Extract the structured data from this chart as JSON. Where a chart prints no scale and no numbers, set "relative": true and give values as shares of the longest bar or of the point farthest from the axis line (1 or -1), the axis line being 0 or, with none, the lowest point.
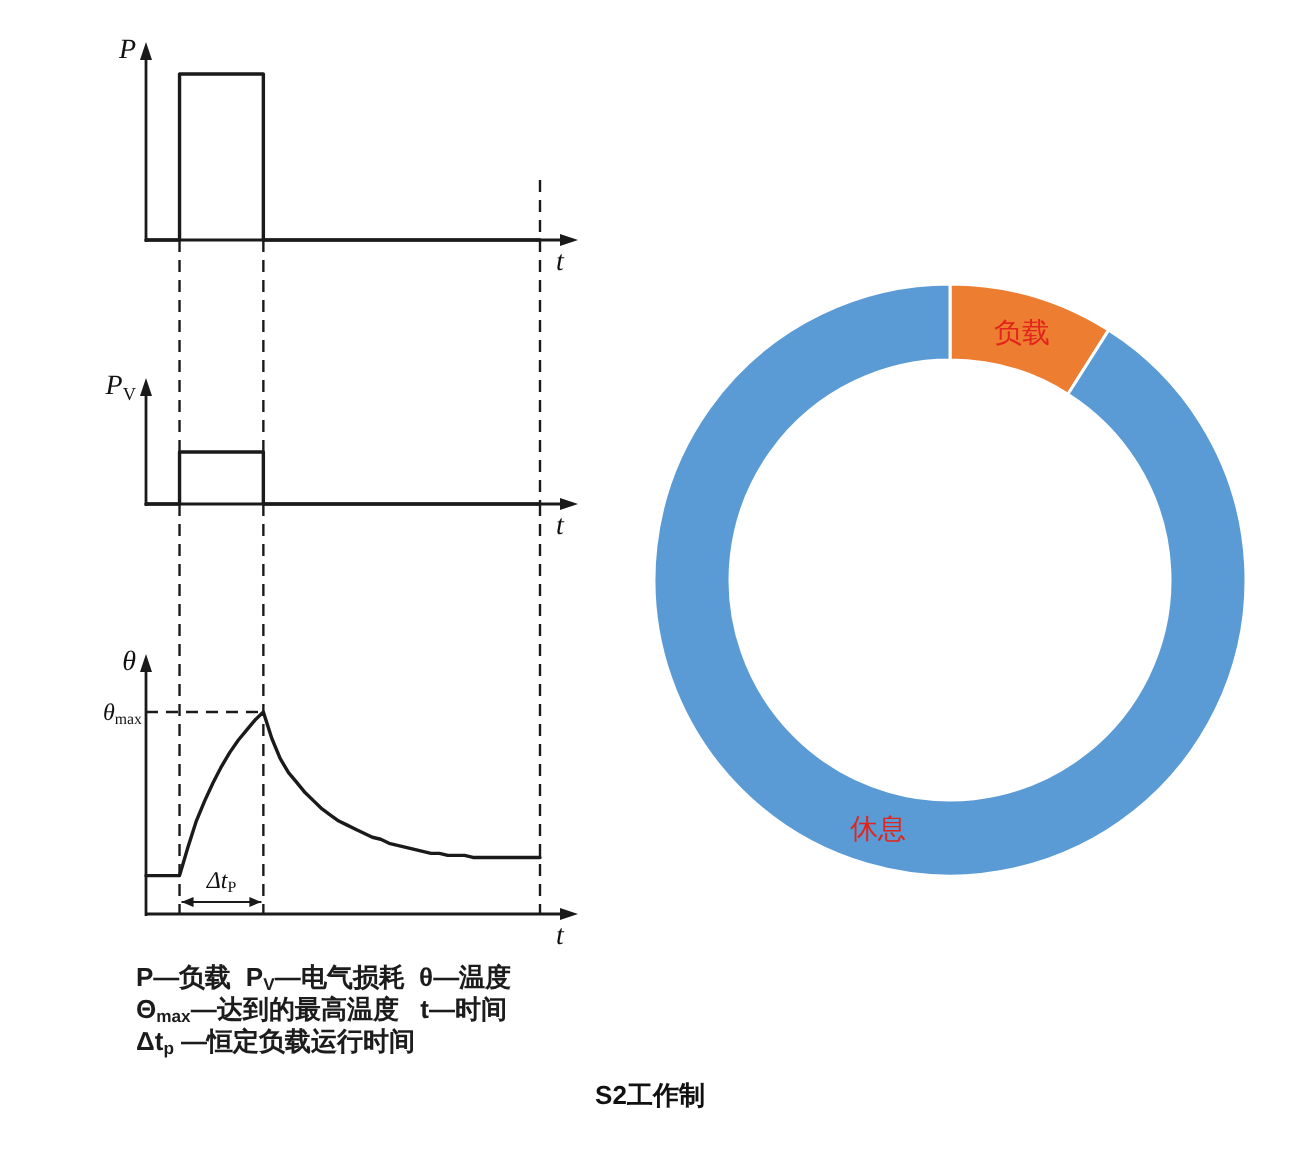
{
  "chart_data": [
    {
      "type": "step",
      "ylabel": "P",
      "xlabel": "t",
      "color": "#1a1a1a",
      "relative": true,
      "grid": "x",
      "categories": [
        null,
        null,
        null,
        null,
        null,
        null,
        null,
        null,
        null,
        null,
        null,
        null,
        null,
        null,
        null,
        null,
        null,
        null,
        null,
        null,
        null,
        null,
        null,
        null,
        null,
        null,
        null,
        null,
        null,
        null,
        null,
        null,
        null,
        null,
        null,
        null,
        null,
        null,
        null,
        null,
        null,
        null,
        null,
        null,
        null,
        null,
        null,
        null
      ],
      "values": [
        0,
        0,
        0,
        0,
        1,
        1,
        1,
        1,
        1,
        1,
        1,
        1,
        1,
        1,
        0,
        0,
        0,
        0,
        0,
        0,
        0,
        0,
        0,
        0,
        0,
        0,
        0,
        0,
        0,
        0,
        0,
        0,
        0,
        0,
        0,
        0,
        0,
        0,
        0,
        0,
        0,
        0,
        0,
        0,
        0,
        0,
        0,
        0
      ]
    },
    {
      "type": "step",
      "ylabel": "P$_{V}$",
      "xlabel": "t",
      "color": "#1a1a1a",
      "relative": true,
      "grid": "x",
      "categories": [
        null,
        null,
        null,
        null,
        null,
        null,
        null,
        null,
        null,
        null,
        null,
        null,
        null,
        null,
        null,
        null,
        null,
        null,
        null,
        null,
        null,
        null,
        null,
        null,
        null,
        null,
        null,
        null,
        null,
        null,
        null,
        null,
        null,
        null,
        null,
        null,
        null,
        null,
        null,
        null,
        null,
        null,
        null,
        null,
        null,
        null,
        null,
        null
      ],
      "values": [
        0,
        0,
        0,
        0,
        1,
        1,
        1,
        1,
        1,
        1,
        1,
        1,
        1,
        1,
        0,
        0,
        0,
        0,
        0,
        0,
        0,
        0,
        0,
        0,
        0,
        0,
        0,
        0,
        0,
        0,
        0,
        0,
        0,
        0,
        0,
        0,
        0,
        0,
        0,
        0,
        0,
        0,
        0,
        0,
        0,
        0,
        0,
        0
      ]
    },
    {
      "type": "line",
      "ylabel": "θ",
      "xlabel": "t",
      "color": "#1a1a1a",
      "relative": true,
      "grid": "x",
      "categories": [
        null,
        null,
        null,
        null,
        null,
        null,
        null,
        null,
        null,
        null,
        null,
        null,
        null,
        null,
        null,
        null,
        null,
        null,
        null,
        null,
        null,
        null,
        null,
        null,
        null,
        null,
        null,
        null,
        null,
        null,
        null,
        null,
        null,
        null,
        null,
        null,
        null,
        null,
        null,
        null,
        null,
        null,
        null,
        null,
        null,
        null,
        null,
        null
      ],
      "values": [
        0.19,
        0.19,
        0.19,
        0.19,
        0.19,
        0.33,
        0.46,
        0.56,
        0.65,
        0.73,
        0.8,
        0.86,
        0.91,
        0.96,
        1,
        0.87,
        0.77,
        0.7,
        0.65,
        0.6,
        0.56,
        0.52,
        0.49,
        0.46,
        0.44,
        0.42,
        0.4,
        0.38,
        0.37,
        0.35,
        0.34,
        0.33,
        0.32,
        0.31,
        0.3,
        0.3,
        0.29,
        0.29,
        0.29,
        0.28,
        0.28,
        0.28,
        0.28,
        0.28,
        0.28,
        0.28,
        0.28,
        0.28
      ],
      "ref_lines": [
        {
          "axis": "y",
          "value": 1,
          "label": "θ$_{max}$",
          "line_style": "dashed"
        }
      ],
      "annotations": [
        "Δt$_{P}$",
        "P—负载  P$_{V}$—电气损耗  θ—温度",
        "Θ$_{max}$—达到的最高温度   t—时间",
        "Δt$_{p}$ —恒定负载运行时间"
      ]
    },
    {
      "type": "donut",
      "categories": [
        "负载",
        "休息"
      ],
      "values": [
        9,
        91
      ],
      "colors": [
        "#ed7d31",
        "#5b9bd5"
      ],
      "annotations": [
        "S2工作制"
      ]
    }
  ]
}
